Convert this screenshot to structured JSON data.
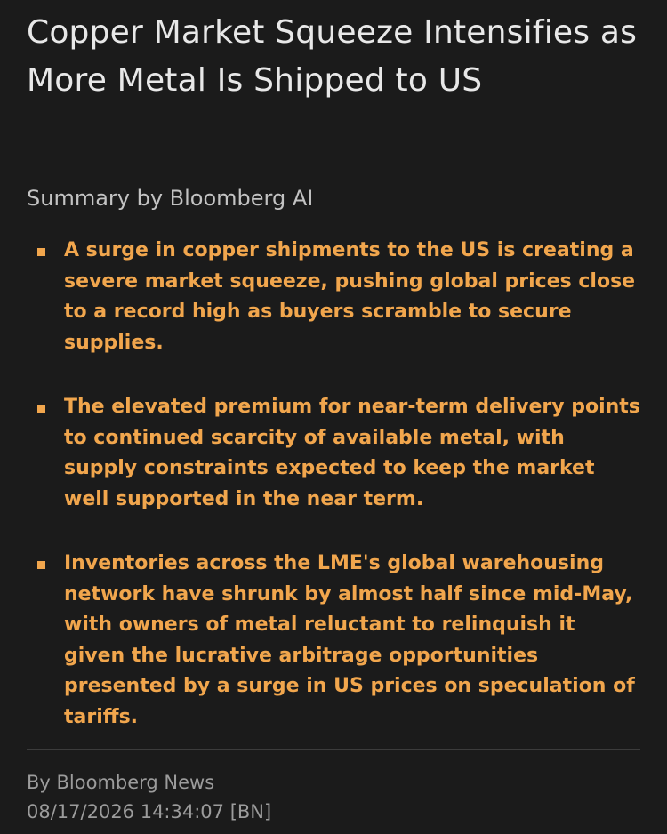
{
  "article": {
    "headline": "Copper Market Squeeze Intensifies as More Metal Is Shipped to US",
    "summary_label": "Summary by Bloomberg AI",
    "bullets": [
      {
        "text": "A surge in copper shipments to the US is creating a severe market squeeze, pushing global prices close to a record high as buyers scramble to secure supplies."
      },
      {
        "text": "The elevated premium for near-term delivery points to continued scarcity of available metal, with supply constraints expected to keep the market well supported in the near term."
      },
      {
        "text": "Inventories across the LME's global warehousing network have shrunk by almost half since mid-May, with owners of metal reluctant to relinquish it given the lucrative arbitrage opportunities presented by a surge in US prices on speculation of tariffs."
      }
    ],
    "byline": "By Bloomberg News",
    "timestamp": "08/17/2026 14:34:07 [BN]"
  },
  "colors": {
    "background": "#1b1b1b",
    "headline": "#e8e8e8",
    "summary_label": "#c3c3c3",
    "bullet_text": "#f1a64d",
    "meta_text": "#9c9c9c",
    "divider": "#3c3c3c"
  }
}
